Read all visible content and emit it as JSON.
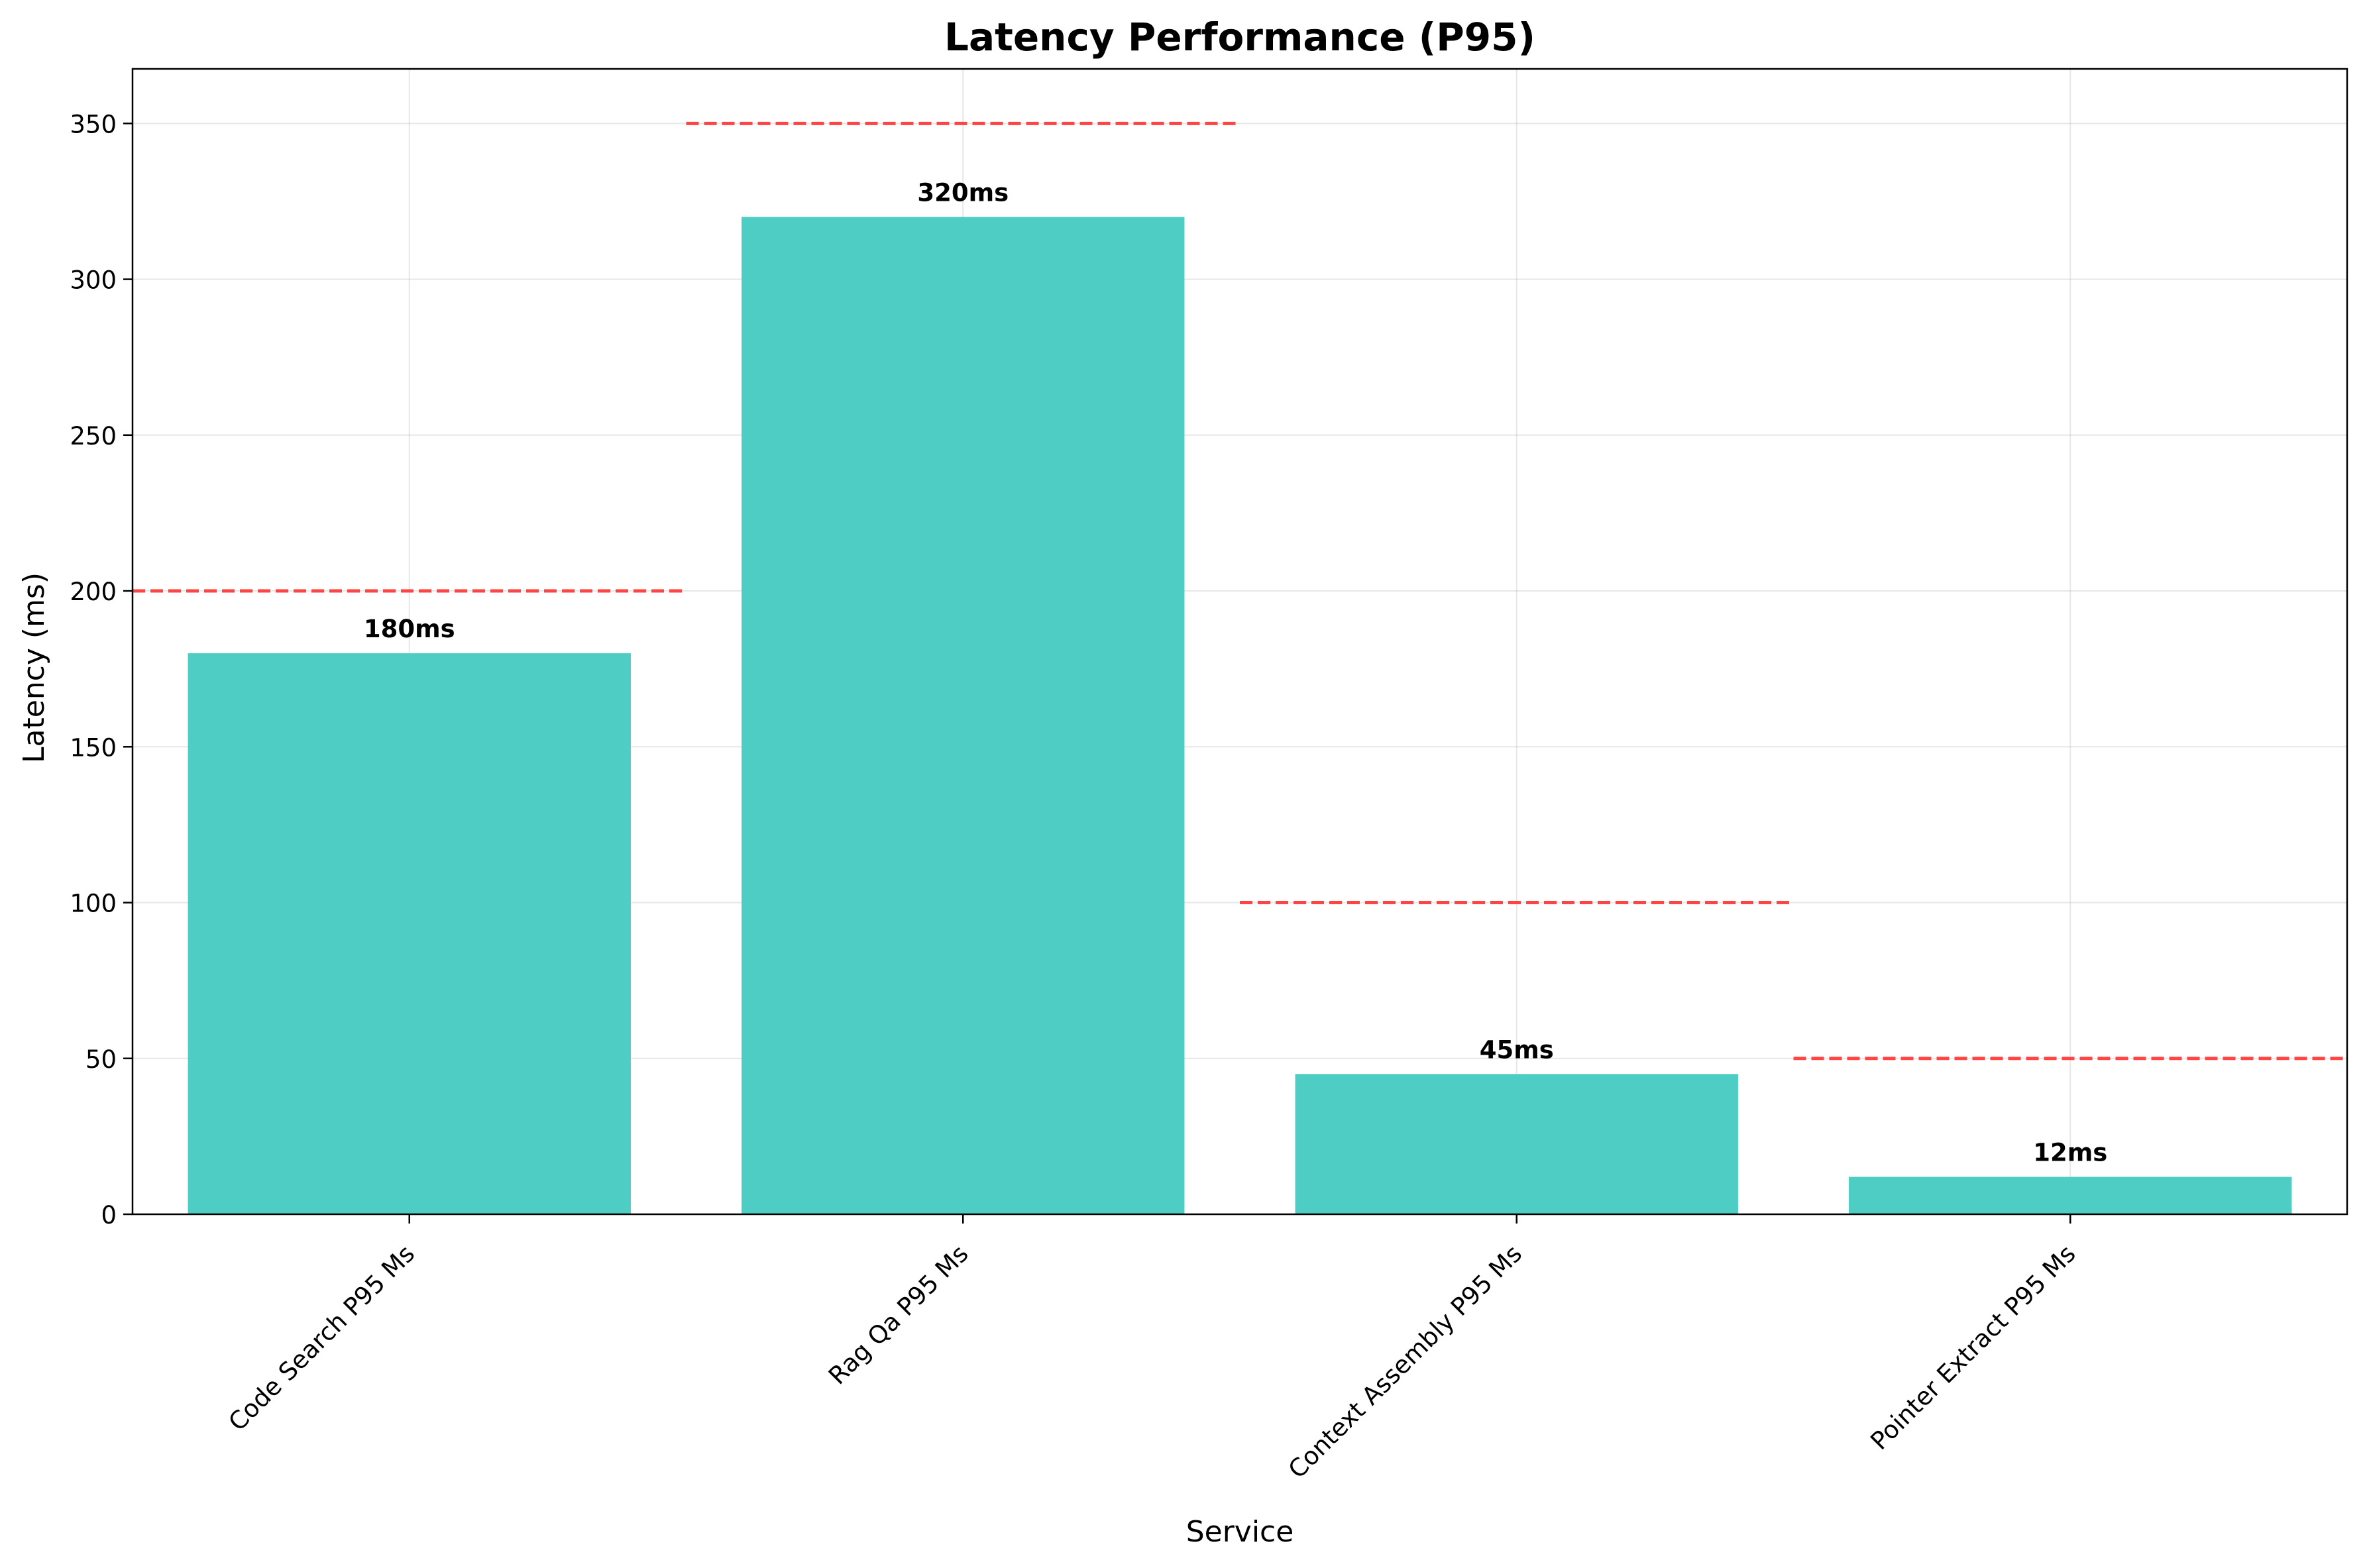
{
  "chart_data": {
    "type": "bar",
    "title": "Latency Performance (P95)",
    "xlabel": "Service",
    "ylabel": "Latency (ms)",
    "categories": [
      "Code Search P95 Ms",
      "Rag Qa P95 Ms",
      "Context Assembly P95 Ms",
      "Pointer Extract P95 Ms"
    ],
    "values": [
      180,
      320,
      45,
      12
    ],
    "value_labels": [
      "180ms",
      "320ms",
      "45ms",
      "12ms"
    ],
    "thresholds": [
      200,
      350,
      100,
      50
    ],
    "ylim": [
      0,
      367.5
    ],
    "yticks": [
      0,
      50,
      100,
      150,
      200,
      250,
      300,
      350
    ],
    "grid": true,
    "bar_color": "#4ecdc4",
    "threshold_color": "#ff4444"
  }
}
